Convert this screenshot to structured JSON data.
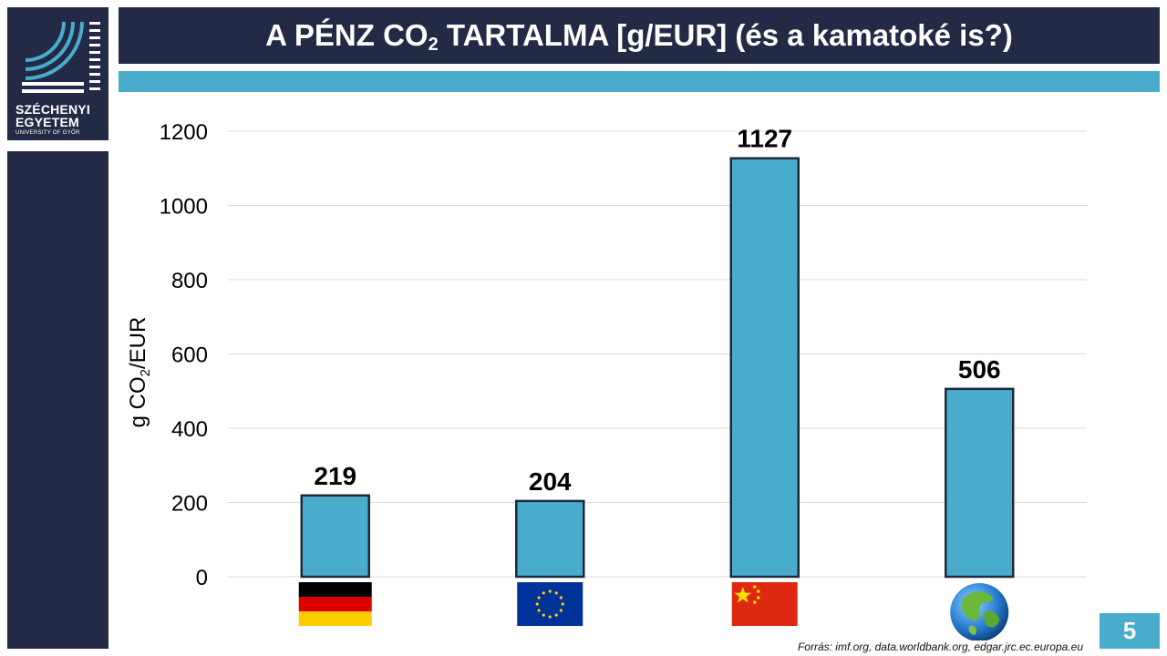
{
  "logo": {
    "line1": "SZÉCHENYI",
    "line2": "EGYETEM",
    "line3": "UNIVERSITY OF GYŐR"
  },
  "slide": {
    "title_pre": "A PÉNZ CO",
    "title_sub": "2",
    "title_post": " TARTALMA [g/EUR] (és a kamatoké is?)",
    "page_number": "5",
    "source": "Forrás:  imf.org, data.worldbank.org,  edgar.jrc.ec.europa.eu"
  },
  "colors": {
    "navy": "#232a45",
    "accent": "#4aaccc",
    "bar_fill": "#4aaccc",
    "bar_stroke": "#1e2a3a"
  },
  "chart_data": {
    "type": "bar",
    "categories": [
      "germany-flag-icon",
      "eu-flag-icon",
      "china-flag-icon",
      "globe-icon"
    ],
    "values": [
      219,
      204,
      1127,
      506
    ],
    "data_labels": [
      "219",
      "204",
      "1127",
      "506"
    ],
    "ylabel_pre": "g CO",
    "ylabel_sub": "2",
    "ylabel_post": "/EUR",
    "ylim": [
      0,
      1200
    ],
    "yticks": [
      0,
      200,
      400,
      600,
      800,
      1000,
      1200
    ],
    "grid": true,
    "legend": "none"
  }
}
